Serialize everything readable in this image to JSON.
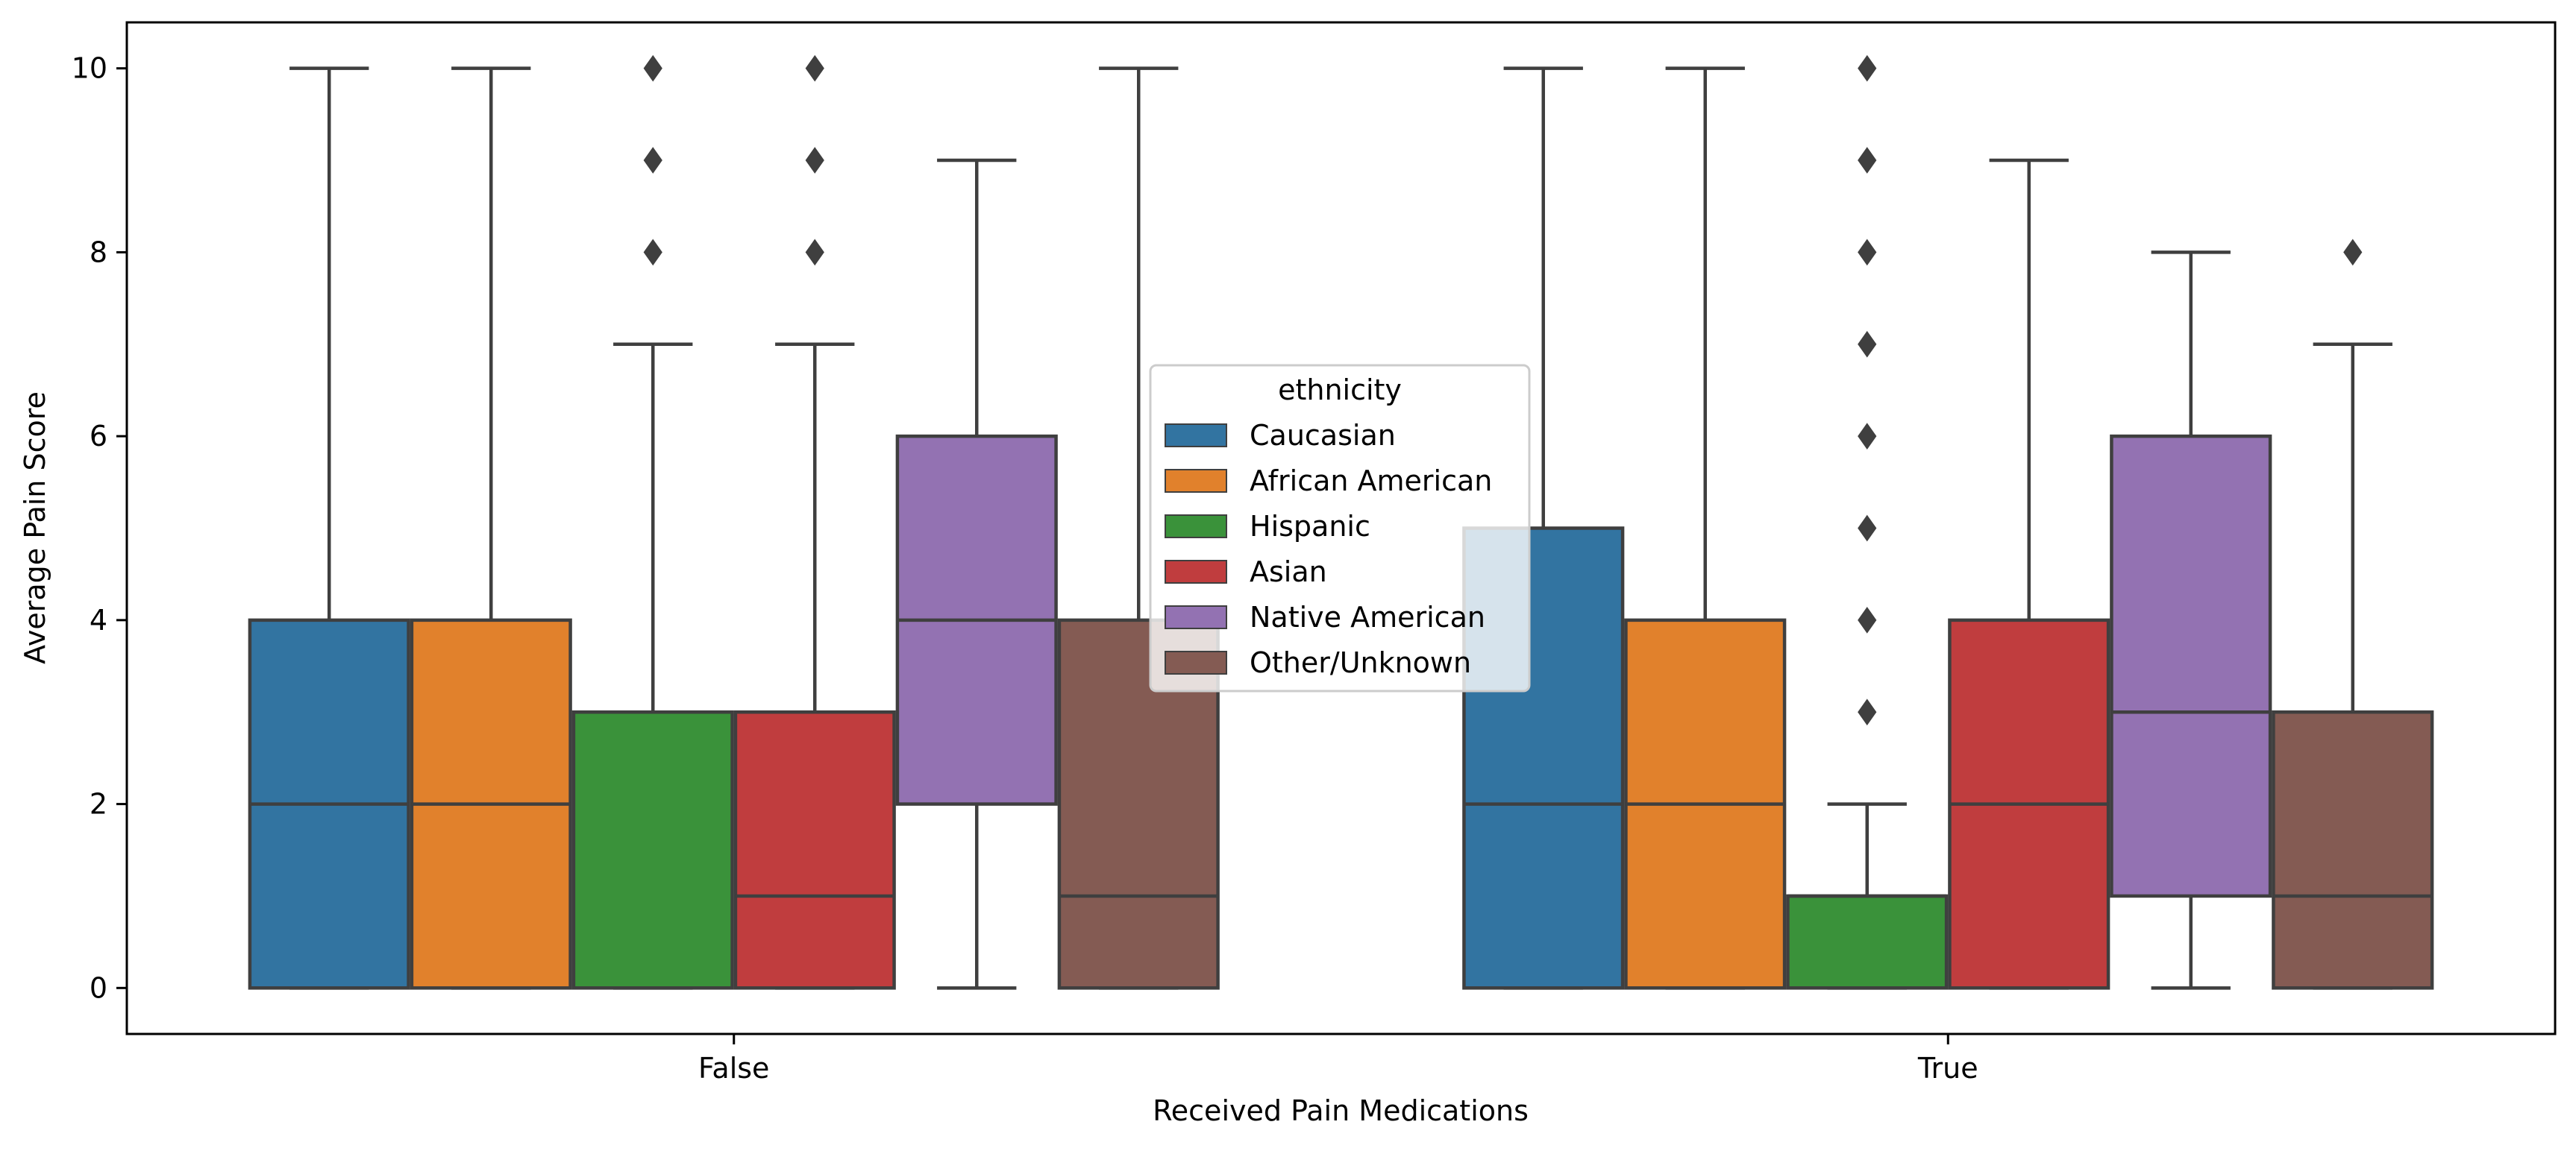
{
  "chart_data": {
    "type": "box",
    "title": "",
    "xlabel": "Received Pain Medications",
    "ylabel": "Average Pain Score",
    "ylim": [
      -0.5,
      10.5
    ],
    "yticks": [
      0,
      2,
      4,
      6,
      8,
      10
    ],
    "grid": false,
    "categories": [
      "False",
      "True"
    ],
    "legend": {
      "title": "ethnicity",
      "placement": "center",
      "entries": [
        "Caucasian",
        "African American",
        "Hispanic",
        "Asian",
        "Native American",
        "Other/Unknown"
      ]
    },
    "series": [
      {
        "name": "Caucasian",
        "color": "#3274a1",
        "boxes": [
          {
            "category": "False",
            "whislo": 0,
            "q1": 0,
            "med": 2,
            "q3": 4,
            "whishi": 10,
            "fliers": []
          },
          {
            "category": "True",
            "whislo": 0,
            "q1": 0,
            "med": 2,
            "q3": 5,
            "whishi": 10,
            "fliers": []
          }
        ]
      },
      {
        "name": "African American",
        "color": "#e1812c",
        "boxes": [
          {
            "category": "False",
            "whislo": 0,
            "q1": 0,
            "med": 2,
            "q3": 4,
            "whishi": 10,
            "fliers": []
          },
          {
            "category": "True",
            "whislo": 0,
            "q1": 0,
            "med": 2,
            "q3": 4,
            "whishi": 10,
            "fliers": []
          }
        ]
      },
      {
        "name": "Hispanic",
        "color": "#3a923a",
        "boxes": [
          {
            "category": "False",
            "whislo": 0,
            "q1": 0,
            "med": 3,
            "q3": 3,
            "whishi": 7,
            "fliers": [
              8,
              9,
              10
            ]
          },
          {
            "category": "True",
            "whislo": 0,
            "q1": 0,
            "med": 1,
            "q3": 1,
            "whishi": 2,
            "fliers": [
              3,
              4,
              5,
              6,
              7,
              8,
              9,
              10
            ]
          }
        ]
      },
      {
        "name": "Asian",
        "color": "#c03d3e",
        "boxes": [
          {
            "category": "False",
            "whislo": 0,
            "q1": 0,
            "med": 1,
            "q3": 3,
            "whishi": 7,
            "fliers": [
              8,
              9,
              10
            ]
          },
          {
            "category": "True",
            "whislo": 0,
            "q1": 0,
            "med": 2,
            "q3": 4,
            "whishi": 9,
            "fliers": []
          }
        ]
      },
      {
        "name": "Native American",
        "color": "#9372b2",
        "boxes": [
          {
            "category": "False",
            "whislo": 0,
            "q1": 2,
            "med": 4,
            "q3": 6,
            "whishi": 9,
            "fliers": []
          },
          {
            "category": "True",
            "whislo": 0,
            "q1": 1,
            "med": 3,
            "q3": 6,
            "whishi": 8,
            "fliers": []
          }
        ]
      },
      {
        "name": "Other/Unknown",
        "color": "#845b53",
        "boxes": [
          {
            "category": "False",
            "whislo": 0,
            "q1": 0,
            "med": 1,
            "q3": 4,
            "whishi": 10,
            "fliers": []
          },
          {
            "category": "True",
            "whislo": 0,
            "q1": 0,
            "med": 1,
            "q3": 3,
            "whishi": 7,
            "fliers": [
              8
            ]
          }
        ]
      }
    ]
  }
}
